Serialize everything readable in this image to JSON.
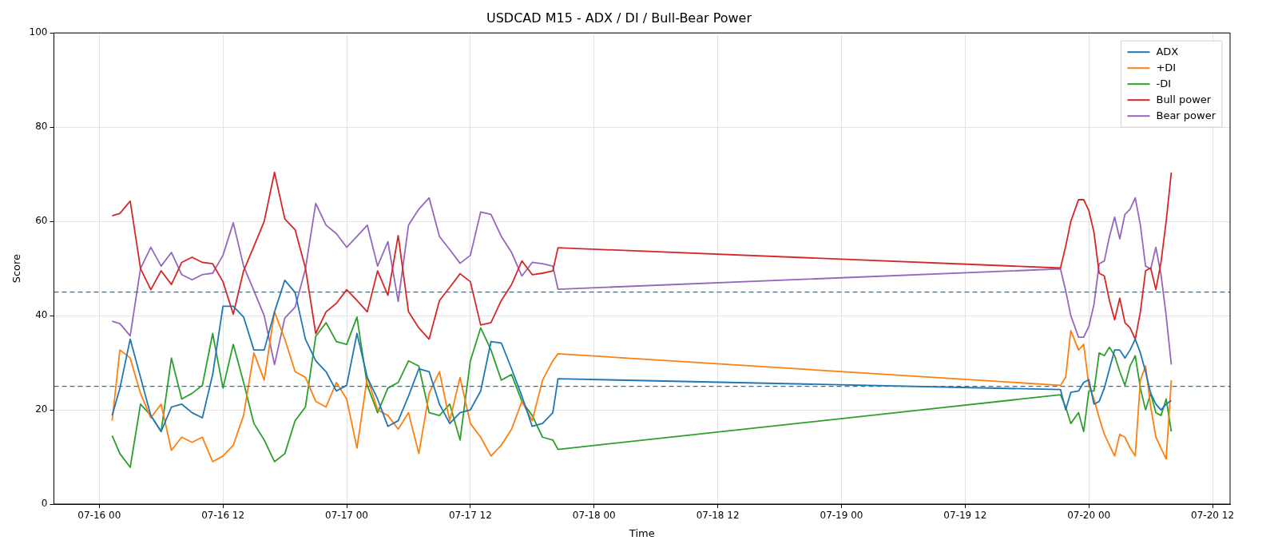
{
  "chart_data": {
    "type": "line",
    "title": "USDCAD M15 - ADX / DI / Bull-Bear Power",
    "xlabel": "Time",
    "ylabel": "Score",
    "x": [
      "--07-16T01:15",
      "--07-16T02:00",
      "--07-16T03:00",
      "--07-16T04:00",
      "--07-16T05:00",
      "--07-16T06:00",
      "--07-16T07:00",
      "--07-16T08:00",
      "--07-16T09:00",
      "--07-16T10:00",
      "--07-16T11:00",
      "--07-16T12:00",
      "--07-16T13:00",
      "--07-16T14:00",
      "--07-16T15:00",
      "--07-16T16:00",
      "--07-16T17:00",
      "--07-16T18:00",
      "--07-16T19:00",
      "--07-16T20:00",
      "--07-16T21:00",
      "--07-16T22:00",
      "--07-16T23:00",
      "--07-17T00:00",
      "--07-17T01:00",
      "--07-17T02:00",
      "--07-17T03:00",
      "--07-17T04:00",
      "--07-17T05:00",
      "--07-17T06:00",
      "--07-17T07:00",
      "--07-17T08:00",
      "--07-17T09:00",
      "--07-17T10:00",
      "--07-17T11:00",
      "--07-17T12:00",
      "--07-17T13:00",
      "--07-17T14:00",
      "--07-17T15:00",
      "--07-17T16:00",
      "--07-17T17:00",
      "--07-17T18:00",
      "--07-17T19:00",
      "--07-17T20:00",
      "--07-17T20:30",
      "--07-19T21:15",
      "--07-19T21:45",
      "--07-19T22:15",
      "--07-19T23:00",
      "--07-19T23:30",
      "--07-20T00:00",
      "--07-20T00:30",
      "--07-20T01:00",
      "--07-20T01:30",
      "--07-20T02:00",
      "--07-20T02:30",
      "--07-20T03:00",
      "--07-20T03:30",
      "--07-20T04:00",
      "--07-20T04:30",
      "--07-20T05:00",
      "--07-20T05:30",
      "--07-20T06:00",
      "--07-20T06:30",
      "--07-20T07:00",
      "--07-20T07:30",
      "--07-20T08:00"
    ],
    "series": [
      {
        "name": "ADX",
        "color": "#1f77b4",
        "values": [
          18.8,
          24.6,
          35,
          26.9,
          18.8,
          15.4,
          20.6,
          21.2,
          19.4,
          18.3,
          27.5,
          42,
          42,
          39.7,
          32.7,
          32.7,
          40.8,
          47.5,
          44.9,
          35,
          30.4,
          28.1,
          24,
          25.2,
          36.2,
          26.9,
          22.3,
          16.5,
          17.7,
          22.9,
          28.7,
          28.1,
          21.2,
          17.1,
          19.4,
          20,
          24,
          34.5,
          34.2,
          28.7,
          22.9,
          16.5,
          17.1,
          19.4,
          26.6,
          24.3,
          20,
          23.7,
          24,
          25.8,
          26.4,
          21.2,
          21.8,
          24.6,
          28.7,
          32.7,
          32.7,
          31,
          32.7,
          35,
          32.1,
          28.1,
          23.5,
          21.2,
          20,
          21.2,
          22
        ]
      },
      {
        "name": "+DI",
        "color": "#ff7f0e",
        "values": [
          17.7,
          32.7,
          31,
          23.5,
          18.3,
          21.2,
          11.4,
          14.2,
          13.1,
          14.2,
          9,
          10.2,
          12.5,
          18.8,
          32.1,
          26.3,
          40.8,
          35,
          28.1,
          26.9,
          21.8,
          20.6,
          25.8,
          22.3,
          11.9,
          26.9,
          20,
          18.8,
          15.9,
          19.4,
          10.7,
          23.5,
          28.1,
          17.7,
          26.9,
          17.1,
          14.2,
          10.2,
          12.5,
          15.9,
          21.8,
          17.7,
          26.3,
          30.4,
          31.9,
          25.2,
          26.9,
          36.8,
          32.7,
          33.9,
          25.2,
          22.3,
          18.3,
          14.8,
          12.5,
          10.2,
          14.8,
          14.2,
          11.9,
          10.2,
          26.3,
          29.3,
          20.6,
          14.2,
          11.9,
          9.6,
          26.3
        ]
      },
      {
        "name": "-DI",
        "color": "#2ca02c",
        "values": [
          14.5,
          10.7,
          7.8,
          21.2,
          18.8,
          15.4,
          31,
          22.3,
          23.5,
          25.2,
          36.2,
          24.6,
          33.9,
          25.8,
          17.1,
          13.6,
          9,
          10.7,
          17.7,
          20.6,
          35.6,
          38.5,
          34.5,
          33.9,
          39.7,
          25.2,
          19.4,
          24.6,
          25.8,
          30.4,
          29.3,
          19.4,
          18.8,
          21.2,
          13.6,
          30.4,
          37.4,
          32.7,
          26.3,
          27.5,
          21.8,
          18.8,
          14.2,
          13.6,
          11.6,
          23.2,
          20.6,
          17.1,
          19.4,
          15.4,
          24,
          24,
          32.1,
          31.5,
          33.3,
          31.5,
          28.1,
          25.2,
          29.3,
          31.5,
          24.6,
          20,
          23.5,
          19.4,
          18.8,
          22.3,
          15.4
        ]
      },
      {
        "name": "Bull power",
        "color": "#d62728",
        "values": [
          61.2,
          61.7,
          64.3,
          50,
          45.5,
          49.5,
          46.6,
          51.3,
          52.4,
          51.3,
          51,
          47.2,
          40.3,
          49.5,
          54.7,
          60,
          70.4,
          60.5,
          58.2,
          50.1,
          36.2,
          40.8,
          42.6,
          45.5,
          43.2,
          40.8,
          49.5,
          44.3,
          57,
          40.8,
          37.4,
          35,
          43.2,
          46,
          48.9,
          47.2,
          38,
          38.5,
          43.2,
          46.6,
          51.6,
          48.7,
          49,
          49.5,
          54.4,
          50.1,
          54.7,
          60,
          64.6,
          64.6,
          62.3,
          57.6,
          49,
          48.4,
          43.2,
          39.1,
          43.7,
          38.5,
          37.4,
          35,
          40.8,
          49.5,
          50.1,
          45.5,
          51.3,
          60,
          70.4
        ]
      },
      {
        "name": "Bear power",
        "color": "#9467bd",
        "values": [
          38.8,
          38.3,
          35.7,
          50,
          54.5,
          50.5,
          53.4,
          48.7,
          47.6,
          48.7,
          49,
          52.8,
          59.7,
          50.5,
          45.3,
          40,
          29.6,
          39.5,
          41.8,
          49.9,
          63.8,
          59.2,
          57.4,
          54.5,
          56.8,
          59.2,
          50.5,
          55.7,
          43,
          59.2,
          62.6,
          65,
          56.8,
          54,
          51.1,
          52.8,
          62,
          61.5,
          56.8,
          53.4,
          48.4,
          51.3,
          51,
          50.5,
          45.6,
          49.9,
          45.3,
          40,
          35.4,
          35.4,
          37.7,
          42.4,
          51,
          51.6,
          56.8,
          60.9,
          56.3,
          61.5,
          62.6,
          65,
          59.2,
          50.5,
          49.9,
          54.5,
          48.7,
          40,
          29.6
        ]
      }
    ],
    "xlim": [
      "--07-15T19:36",
      "--07-20T13:42"
    ],
    "xticks": [
      {
        "value": "--07-16T00:00",
        "label": "07-16 00"
      },
      {
        "value": "--07-16T12:00",
        "label": "07-16 12"
      },
      {
        "value": "--07-17T00:00",
        "label": "07-17 00"
      },
      {
        "value": "--07-17T12:00",
        "label": "07-17 12"
      },
      {
        "value": "--07-18T00:00",
        "label": "07-18 00"
      },
      {
        "value": "--07-18T12:00",
        "label": "07-18 12"
      },
      {
        "value": "--07-19T00:00",
        "label": "07-19 00"
      },
      {
        "value": "--07-19T12:00",
        "label": "07-19 12"
      },
      {
        "value": "--07-20T00:00",
        "label": "07-20 00"
      },
      {
        "value": "--07-20T12:00",
        "label": "07-20 12"
      }
    ],
    "ylim": [
      0,
      100
    ],
    "yticks": [
      0,
      20,
      40,
      60,
      80,
      100
    ],
    "ref_lines": [
      {
        "axis": "y",
        "value": 45,
        "color": "#1f77b4",
        "line_style": "dashed"
      },
      {
        "axis": "y",
        "value": 25,
        "color": "#1f77b4",
        "line_style": "dashed"
      }
    ],
    "grid": true,
    "legend": "top right"
  }
}
